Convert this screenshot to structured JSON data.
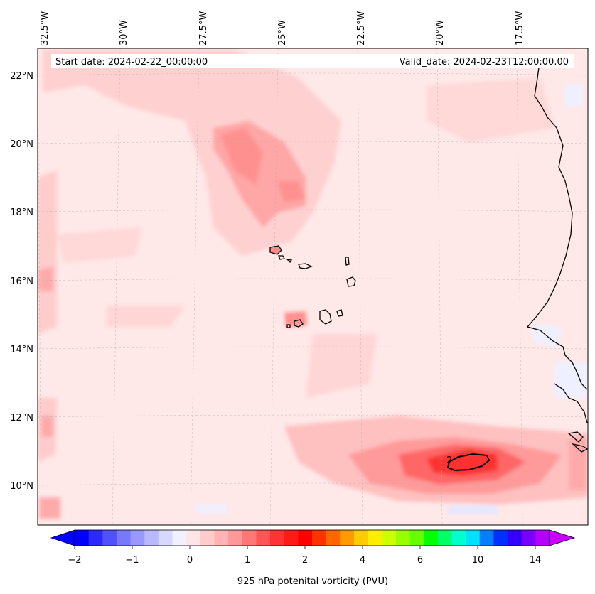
{
  "map": {
    "header": {
      "start_date": "Start date: 2024-02-22_00:00:00",
      "valid_date": "Valid_date: 2024-02-23T12:00:00.00"
    },
    "lon_labels": [
      "32.5°W",
      "30°W",
      "27.5°W",
      "25°W",
      "22.5°W",
      "20°W",
      "17.5°W"
    ],
    "lat_labels": [
      "22°N",
      "20°N",
      "18°N",
      "16°N",
      "14°N",
      "12°N",
      "10°N"
    ],
    "contour_label": "2",
    "colorbar": {
      "label": "925 hPa potenital vorticity (PVU)",
      "tick_labels": [
        "−2",
        "−1",
        "0",
        "1",
        "2",
        "4",
        "6",
        "10",
        "14"
      ],
      "colors": [
        "#0000ff",
        "#2a2aff",
        "#5050ff",
        "#7878ff",
        "#9898ff",
        "#b8b8ff",
        "#d8d8ff",
        "#f0f0ff",
        "#ffe6e6",
        "#ffcccc",
        "#ffb3b3",
        "#ff9999",
        "#ff7777",
        "#ff5555",
        "#ff3333",
        "#ff1a1a",
        "#ff0000",
        "#ff3300",
        "#ff6600",
        "#ff9900",
        "#ffcc00",
        "#ffee00",
        "#ccff00",
        "#99ff00",
        "#66ff00",
        "#00ff00",
        "#00ff66",
        "#00ffcc",
        "#00e0ff",
        "#0080ff",
        "#0030ff",
        "#3300ff",
        "#7700ff",
        "#b300ff"
      ]
    }
  }
}
